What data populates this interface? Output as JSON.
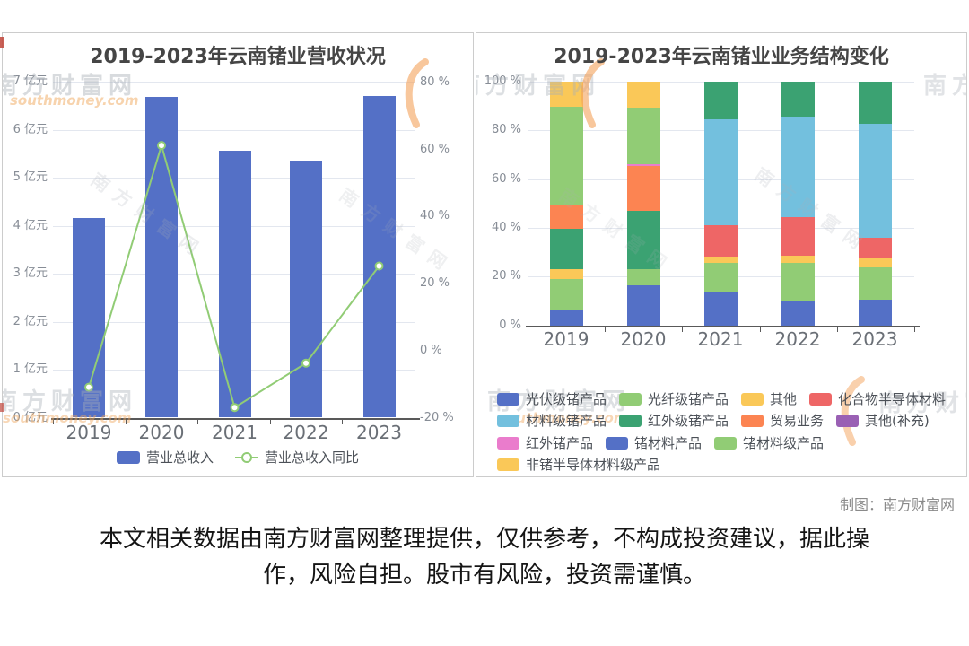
{
  "page": {
    "credit": "制图：南方财富网",
    "disclaimer_line1": "本文相关数据由南方财富网整理提供，仅供参考，不构成投资建议，据此操",
    "disclaimer_line2": "作，风险自担。股市有风险，投资需谨慎。"
  },
  "watermarks": {
    "text": "南方财富网",
    "url": "southmoney.com"
  },
  "colors": {
    "bar_blue": "#5470C6",
    "line_green": "#91CC75",
    "yellow": "#FAC858",
    "red": "#EE6666",
    "sky_blue": "#73C0DE",
    "dark_green": "#3BA272",
    "orange": "#FC8452",
    "purple": "#9A60B4",
    "pink": "#EA7CCC",
    "grid": "#e3e7ef",
    "axis": "#595959"
  },
  "chart_data": [
    {
      "type": "bar+line",
      "title": "2019-2023年云南锗业营收状况",
      "categories": [
        "2019",
        "2020",
        "2021",
        "2022",
        "2023"
      ],
      "series": [
        {
          "name": "营业总收入",
          "type": "bar",
          "unit": "亿元",
          "axis": "left",
          "values": [
            4.15,
            6.69,
            5.56,
            5.36,
            6.71
          ],
          "color": "#5470C6"
        },
        {
          "name": "营业总收入同比",
          "type": "line",
          "unit": "%",
          "axis": "right",
          "values": [
            -10.85,
            61.21,
            -16.89,
            -3.66,
            25.28
          ],
          "color": "#91CC75"
        }
      ],
      "left_axis": {
        "min": 0,
        "max": 7,
        "values": [
          0,
          1,
          2,
          3,
          4,
          5,
          6,
          7
        ],
        "ticks": [
          "0 亿元",
          "1 亿元",
          "2 亿元",
          "3 亿元",
          "4 亿元",
          "5 亿元",
          "6 亿元",
          "7 亿元"
        ]
      },
      "right_axis": {
        "min": -20,
        "max": 80,
        "values": [
          -20,
          0,
          20,
          40,
          60,
          80
        ],
        "ticks": [
          "-20 %",
          "0 %",
          "20 %",
          "40 %",
          "60 %",
          "80 %"
        ]
      },
      "legend": [
        "营业总收入",
        "营业总收入同比"
      ],
      "grid": "on",
      "legend_position": "bottom"
    },
    {
      "type": "bar",
      "subtype": "stacked-100-percent",
      "title": "2019-2023年云南锗业业务结构变化",
      "categories": [
        "2019",
        "2020",
        "2021",
        "2022",
        "2023"
      ],
      "unit": "%",
      "series": [
        {
          "name": "光伏级锗产品",
          "color": "#5470C6",
          "values": [
            6.3,
            16.4,
            13.4,
            9.8,
            10.4
          ]
        },
        {
          "name": "光纤级锗产品",
          "color": "#91CC75",
          "values": [
            12.6,
            6.8,
            12.2,
            15.8,
            13.4
          ]
        },
        {
          "name": "其他",
          "color": "#FAC858",
          "values": [
            4.3,
            0,
            2.5,
            3.1,
            3.7
          ]
        },
        {
          "name": "化合物半导体材料",
          "color": "#EE6666",
          "values": [
            0,
            0,
            12.9,
            15.6,
            8.6
          ]
        },
        {
          "name": "材料级锗产品",
          "color": "#73C0DE",
          "values": [
            0,
            0,
            43.5,
            41.2,
            46.6
          ]
        },
        {
          "name": "红外级锗产品",
          "color": "#3BA272",
          "values": [
            16.6,
            23.9,
            15.5,
            14.5,
            17.3
          ]
        },
        {
          "name": "贸易业务",
          "color": "#FC8452",
          "values": [
            9.8,
            18.4,
            0,
            0,
            0
          ]
        },
        {
          "name": "其他(补充)",
          "color": "#9A60B4",
          "values": [
            0,
            0,
            0,
            0,
            0
          ]
        },
        {
          "name": "红外锗产品",
          "color": "#EA7CCC",
          "values": [
            0,
            0.7,
            0,
            0,
            0
          ]
        },
        {
          "name": "锗材料产品",
          "color": "#5470C6",
          "values": [
            0,
            0,
            0,
            0,
            0
          ]
        },
        {
          "name": "锗材料级产品",
          "color": "#91CC75",
          "values": [
            40.1,
            23.3,
            0,
            0,
            0
          ]
        },
        {
          "name": "非锗半导体材料级产品",
          "color": "#FAC858",
          "values": [
            10.3,
            10.5,
            0,
            0,
            0
          ]
        }
      ],
      "y_axis": {
        "min": 0,
        "max": 100,
        "values": [
          0,
          20,
          40,
          60,
          80,
          100
        ],
        "ticks": [
          "0 %",
          "20 %",
          "40 %",
          "60 %",
          "80 %",
          "100 %"
        ]
      },
      "legend_rows": [
        [
          0,
          1,
          2,
          3
        ],
        [
          4,
          5,
          6,
          7
        ],
        [
          8,
          9,
          10
        ],
        [
          11
        ]
      ],
      "grid": "on",
      "legend_position": "bottom"
    }
  ]
}
